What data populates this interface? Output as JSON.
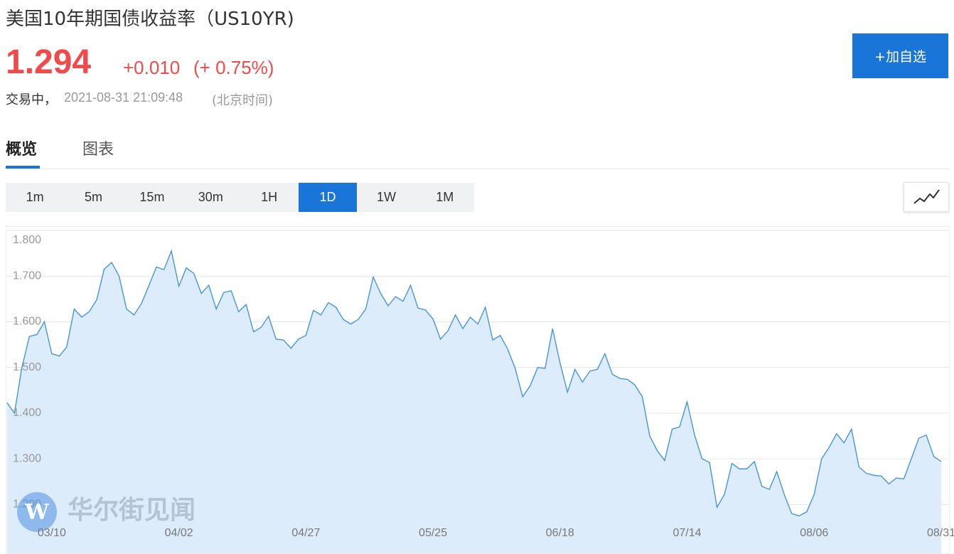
{
  "header": {
    "title": "美国10年期国债收益率（US10YR)",
    "price": "1.294",
    "change": "+0.010",
    "change_pct": "(+ 0.75%)",
    "status": "交易中，",
    "time": "2021-08-31 21:09:48",
    "timezone": "(北京时间)",
    "watchlist_button": "+加自选"
  },
  "tabs": [
    "概览",
    "图表"
  ],
  "periods": [
    "1m",
    "5m",
    "15m",
    "30m",
    "1H",
    "1D",
    "1W",
    "1M"
  ],
  "active_period": "1D",
  "watermark": "华尔街见闻",
  "chart_data": {
    "type": "area",
    "color": "#3a8fdc",
    "fill": "#ddecfa",
    "grid": true,
    "ylim": [
      1.1,
      1.8
    ],
    "yticks": [
      {
        "value": 1.2,
        "label": "1.200"
      },
      {
        "value": 1.3,
        "label": "1.300"
      },
      {
        "value": 1.4,
        "label": "1.400"
      },
      {
        "value": 1.5,
        "label": "1.500"
      },
      {
        "value": 1.6,
        "label": "1.600"
      },
      {
        "value": 1.7,
        "label": "1.700"
      },
      {
        "value": 1.8,
        "label": "1.800"
      }
    ],
    "categories": [
      null,
      null,
      null,
      null,
      null,
      null,
      "03/10",
      null,
      null,
      null,
      null,
      null,
      null,
      null,
      null,
      null,
      null,
      null,
      null,
      null,
      null,
      null,
      null,
      "04/02",
      null,
      null,
      null,
      null,
      null,
      null,
      null,
      null,
      null,
      null,
      null,
      null,
      null,
      null,
      null,
      null,
      "04/27",
      null,
      null,
      null,
      null,
      null,
      null,
      null,
      null,
      null,
      null,
      null,
      null,
      null,
      null,
      null,
      null,
      "05/25",
      null,
      null,
      null,
      null,
      null,
      null,
      null,
      null,
      null,
      null,
      null,
      null,
      null,
      null,
      null,
      null,
      "06/18",
      null,
      null,
      null,
      null,
      null,
      null,
      null,
      null,
      null,
      null,
      null,
      null,
      null,
      null,
      null,
      null,
      "07/14",
      null,
      null,
      null,
      null,
      null,
      null,
      null,
      null,
      null,
      null,
      null,
      null,
      null,
      null,
      null,
      null,
      "08/06",
      null,
      null,
      null,
      null,
      null,
      null,
      null,
      null,
      null,
      null,
      null,
      null,
      null,
      null,
      null,
      null,
      "08/31"
    ],
    "values": [
      1.423,
      1.4,
      1.5,
      1.568,
      1.572,
      1.6,
      1.53,
      1.525,
      1.545,
      1.628,
      1.61,
      1.622,
      1.648,
      1.715,
      1.73,
      1.7,
      1.628,
      1.615,
      1.64,
      1.68,
      1.72,
      1.714,
      1.755,
      1.678,
      1.718,
      1.706,
      1.662,
      1.68,
      1.628,
      1.664,
      1.668,
      1.622,
      1.638,
      1.578,
      1.588,
      1.612,
      1.562,
      1.56,
      1.542,
      1.562,
      1.57,
      1.625,
      1.615,
      1.642,
      1.632,
      1.605,
      1.595,
      1.605,
      1.628,
      1.698,
      1.662,
      1.635,
      1.655,
      1.645,
      1.68,
      1.63,
      1.626,
      1.606,
      1.562,
      1.58,
      1.615,
      1.585,
      1.61,
      1.595,
      1.632,
      1.56,
      1.57,
      1.54,
      1.498,
      1.436,
      1.46,
      1.5,
      1.498,
      1.585,
      1.51,
      1.446,
      1.496,
      1.468,
      1.492,
      1.496,
      1.53,
      1.485,
      1.476,
      1.474,
      1.462,
      1.436,
      1.35,
      1.318,
      1.296,
      1.365,
      1.37,
      1.425,
      1.352,
      1.3,
      1.292,
      1.194,
      1.222,
      1.29,
      1.278,
      1.278,
      1.294,
      1.24,
      1.233,
      1.272,
      1.222,
      1.18,
      1.175,
      1.184,
      1.222,
      1.3,
      1.325,
      1.355,
      1.335,
      1.365,
      1.282,
      1.268,
      1.264,
      1.262,
      1.245,
      1.258,
      1.256,
      1.3,
      1.345,
      1.352,
      1.305,
      1.294
    ]
  }
}
